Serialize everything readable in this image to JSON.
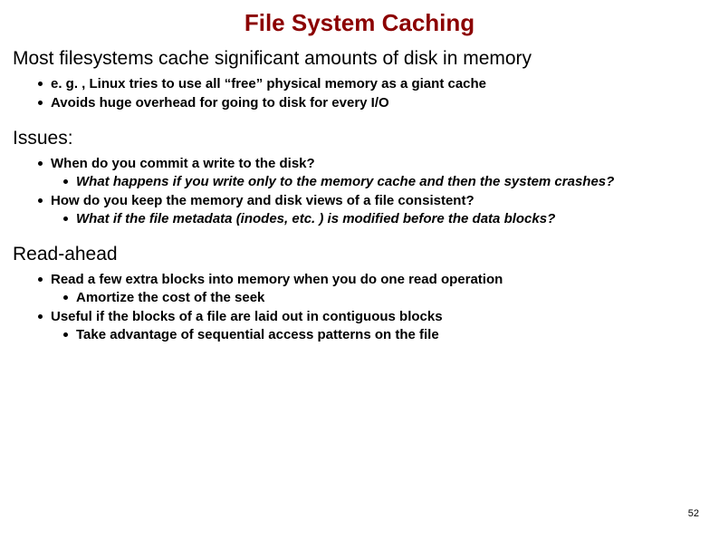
{
  "title": "File System Caching",
  "title_color": "#8b0000",
  "background_color": "#ffffff",
  "text_color": "#000000",
  "title_fontsize": 26,
  "heading_fontsize": 21,
  "bullet_fontsize": 15,
  "page_number": "52",
  "sections": [
    {
      "heading": "Most filesystems cache significant amounts of disk in memory",
      "bullets": [
        {
          "text": "e. g. , Linux tries to use all “free” physical memory as a giant cache",
          "subs": []
        },
        {
          "text": "Avoids huge overhead for going to disk for every I/O",
          "subs": []
        }
      ]
    },
    {
      "heading": "Issues:",
      "bullets": [
        {
          "text": "When do you commit a write to the disk?",
          "subs": [
            {
              "text": "What happens if you write only to the memory cache and then the system crashes?",
              "italic": true
            }
          ]
        },
        {
          "text": "How do you keep the memory and disk views of a file consistent?",
          "subs": [
            {
              "text": "What if the file metadata (inodes, etc. ) is modified before the data blocks?",
              "italic": true
            }
          ]
        }
      ]
    },
    {
      "heading": "Read-ahead",
      "bullets": [
        {
          "text": "Read a few extra blocks into memory when you do one read operation",
          "subs": [
            {
              "text": "Amortize the cost of the seek",
              "italic": false
            }
          ]
        },
        {
          "text": "Useful if the blocks of a file are laid out in contiguous blocks",
          "subs": [
            {
              "text": "Take advantage of sequential access patterns on the file",
              "italic": false
            }
          ]
        }
      ]
    }
  ]
}
